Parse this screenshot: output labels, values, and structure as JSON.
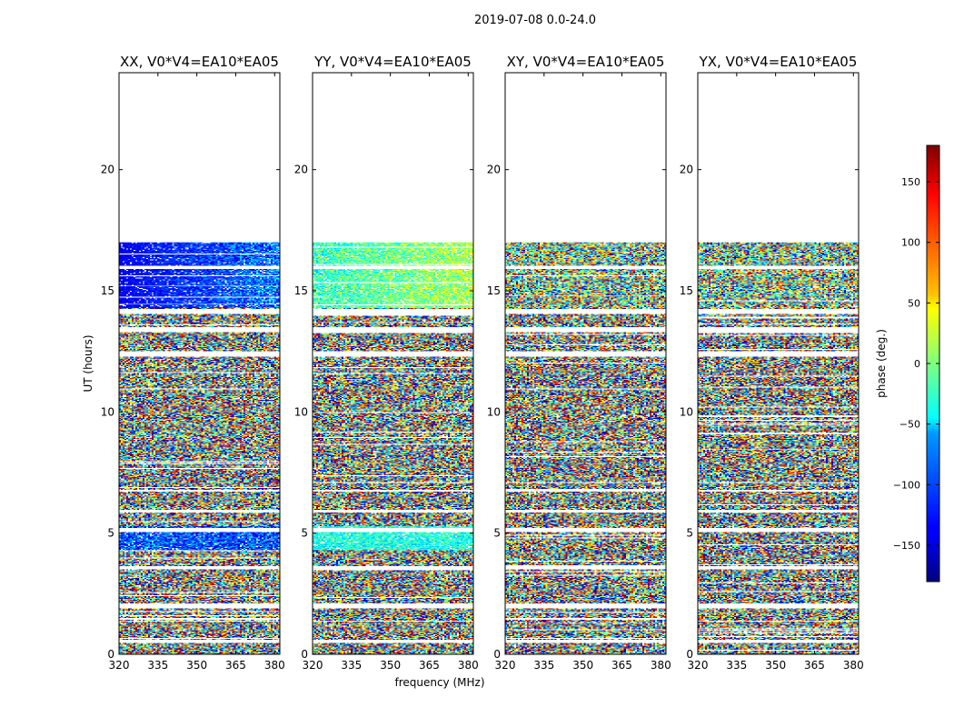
{
  "figure": {
    "suptitle": "2019-07-08 0.0-24.0",
    "xlabel": "frequency (MHz)",
    "ylabel": "UT (hours)"
  },
  "chart_data": {
    "type": "heatmap",
    "title": "2019-07-08 0.0-24.0",
    "xlabel": "frequency (MHz)",
    "ylabel": "UT (hours)",
    "xlim": [
      320,
      382
    ],
    "ylim": [
      0,
      24
    ],
    "xticks": [
      320,
      335,
      350,
      365,
      380
    ],
    "yticks": [
      0,
      5,
      10,
      15,
      20
    ],
    "data_extent_hours": [
      0,
      17
    ],
    "panels": [
      {
        "title": "XX, V0*V4=EA10*EA05",
        "baseline": "V0*V4=EA10*EA05",
        "pol": "XX"
      },
      {
        "title": "YY, V0*V4=EA10*EA05",
        "baseline": "V0*V4=EA10*EA05",
        "pol": "YY"
      },
      {
        "title": "XY, V0*V4=EA10*EA05",
        "baseline": "V0*V4=EA10*EA05",
        "pol": "XY"
      },
      {
        "title": "YX, V0*V4=EA10*EA05",
        "baseline": "V0*V4=EA10*EA05",
        "pol": "YX"
      }
    ],
    "flagged_gaps_hours": [
      [
        0.45,
        0.6
      ],
      [
        1.9,
        2.1
      ],
      [
        3.5,
        3.65
      ],
      [
        5.05,
        5.2
      ],
      [
        5.85,
        5.95
      ],
      [
        6.7,
        6.8
      ],
      [
        12.3,
        12.5
      ],
      [
        13.3,
        13.5
      ],
      [
        14.05,
        14.25
      ],
      [
        15.9,
        16.05
      ]
    ],
    "colorbar": {
      "label": "phase (deg.)",
      "min": -180,
      "max": 180,
      "ticks": [
        -150,
        -100,
        -50,
        0,
        50,
        100,
        150
      ],
      "tick_labels": [
        "−150",
        "−100",
        "−50",
        "0",
        "50",
        "100",
        "150"
      ],
      "colormap": "jet"
    }
  }
}
